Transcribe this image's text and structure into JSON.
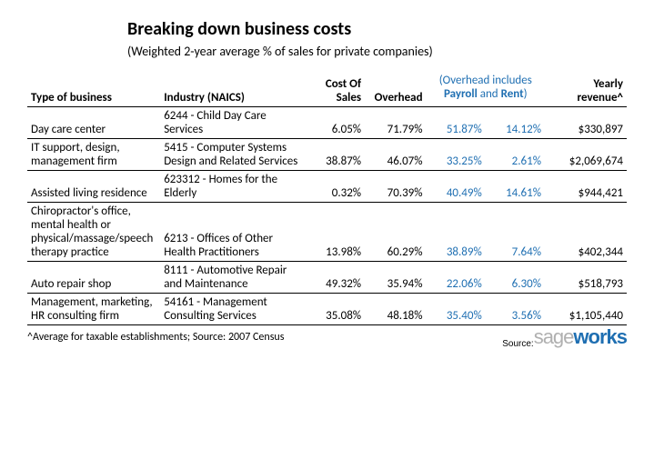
{
  "title": "Breaking down business costs",
  "subtitle": "(Weighted 2-year average % of sales for private companies)",
  "headers": {
    "type": "Type of business",
    "industry": "Industry (NAICS)",
    "cost_of_sales": "Cost Of Sales",
    "overhead": "Overhead",
    "overhead_note_pre": "(Overhead includes ",
    "payroll": "Payroll",
    "and": " and ",
    "rent": "Rent",
    "overhead_note_post": ")",
    "revenue": "Yearly revenue^"
  },
  "rows": [
    {
      "type": "Day care center",
      "industry": "6244 - Child Day Care Services",
      "cost": "6.05%",
      "overhead": "71.79%",
      "payroll": "51.87%",
      "rent": "14.12%",
      "revenue": "$330,897"
    },
    {
      "type": "IT support, design, management firm",
      "industry": "5415 - Computer Systems Design and Related Services",
      "cost": "38.87%",
      "overhead": "46.07%",
      "payroll": "33.25%",
      "rent": "2.61%",
      "revenue": "$2,069,674"
    },
    {
      "type": "Assisted living residence",
      "industry": "623312 - Homes for the Elderly",
      "cost": "0.32%",
      "overhead": "70.39%",
      "payroll": "40.49%",
      "rent": "14.61%",
      "revenue": "$944,421"
    },
    {
      "type": "Chiropractor's office, mental health or physical/massage/speech therapy practice",
      "industry": "6213 - Offices of Other Health Practitioners",
      "cost": "13.98%",
      "overhead": "60.29%",
      "payroll": "38.89%",
      "rent": "7.64%",
      "revenue": "$402,344"
    },
    {
      "type": "Auto repair shop",
      "industry": "8111 - Automotive Repair and Maintenance",
      "cost": "49.32%",
      "overhead": "35.94%",
      "payroll": "22.06%",
      "rent": "6.30%",
      "revenue": "$518,793"
    },
    {
      "type": "Management, marketing, HR consulting firm",
      "industry": "54161 - Management Consulting Services",
      "cost": "35.08%",
      "overhead": "48.18%",
      "payroll": "35.40%",
      "rent": "3.56%",
      "revenue": "$1,105,440"
    }
  ],
  "footnote": "^Average for taxable establishments; Source: 2007 Census",
  "source": {
    "label": "Source:",
    "brand1": "sage",
    "brand2": "works"
  },
  "colors": {
    "link": "#1f6fb2",
    "gray": "#b0b0b0",
    "text": "#000000",
    "bg": "#ffffff"
  }
}
